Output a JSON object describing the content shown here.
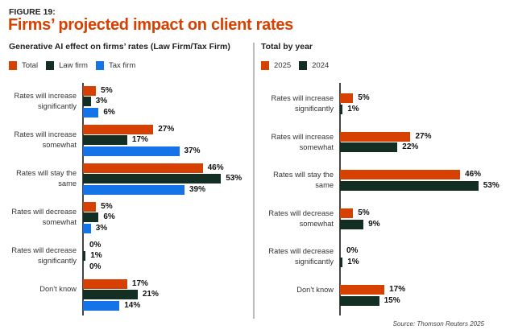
{
  "figure_label": "FIGURE 19:",
  "title": "Firms’ projected impact on client rates",
  "source": "Source: Thomson Reuters 2025",
  "colors": {
    "orange": "#d64000",
    "dark_green": "#132e22",
    "blue": "#1473e6"
  },
  "chart_data": [
    {
      "type": "bar",
      "orientation": "horizontal",
      "title": "Generative AI effect on firms’ rates (Law Firm/Tax Firm)",
      "legend_placement": "top-left",
      "categories": [
        "Rates will increase significantly",
        "Rates will increase somewhat",
        "Rates will stay the same",
        "Rates will decrease somewhat",
        "Rates will decrease significantly",
        "Don't know"
      ],
      "series": [
        {
          "name": "Total",
          "color": "#d64000",
          "values": [
            5,
            27,
            46,
            5,
            0,
            17
          ]
        },
        {
          "name": "Law firm",
          "color": "#132e22",
          "values": [
            3,
            17,
            53,
            6,
            1,
            21
          ]
        },
        {
          "name": "Tax firm",
          "color": "#1473e6",
          "values": [
            6,
            37,
            39,
            3,
            0,
            14
          ]
        }
      ],
      "unit": "%",
      "grid": false
    },
    {
      "type": "bar",
      "orientation": "horizontal",
      "title": "Total by year",
      "legend_placement": "top-left",
      "categories": [
        "Rates will increase significantly",
        "Rates will increase somewhat",
        "Rates will stay the same",
        "Rates will decrease somewhat",
        "Rates will decrease significantly",
        "Don't know"
      ],
      "series": [
        {
          "name": "2025",
          "color": "#d64000",
          "values": [
            5,
            27,
            46,
            5,
            0,
            17
          ]
        },
        {
          "name": "2024",
          "color": "#132e22",
          "values": [
            1,
            22,
            53,
            9,
            1,
            15
          ]
        }
      ],
      "unit": "%",
      "grid": false
    }
  ]
}
